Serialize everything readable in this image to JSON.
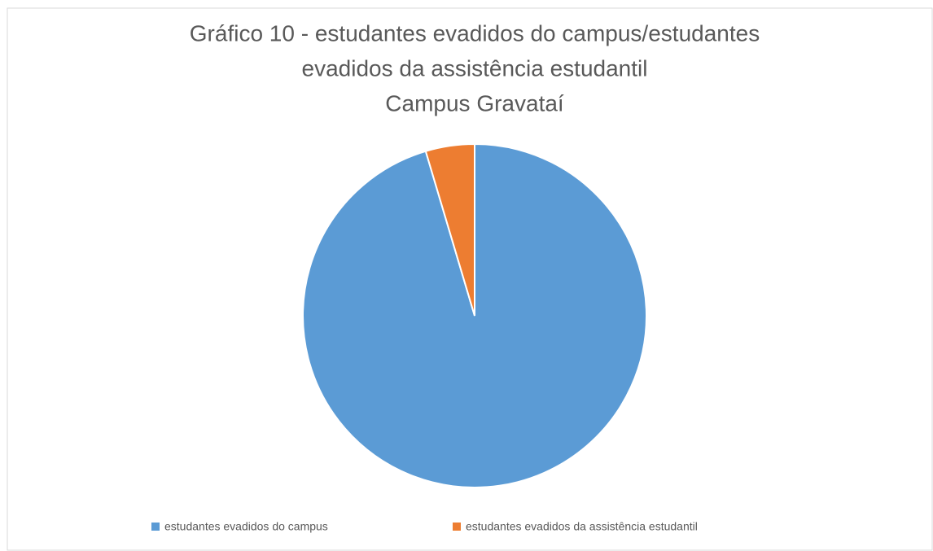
{
  "chart_data": {
    "type": "pie",
    "title": [
      "Gráfico 10 - estudantes evadidos do campus/estudantes",
      "evadidos da assistência estudantil",
      "Campus Gravataí"
    ],
    "categories": [
      "estudantes evadidos do campus",
      "estudantes evadidos da assistência estudantil"
    ],
    "values": [
      95.4,
      4.6
    ],
    "colors": [
      "#5b9bd5",
      "#ed7d31"
    ],
    "legend": "bottom"
  }
}
